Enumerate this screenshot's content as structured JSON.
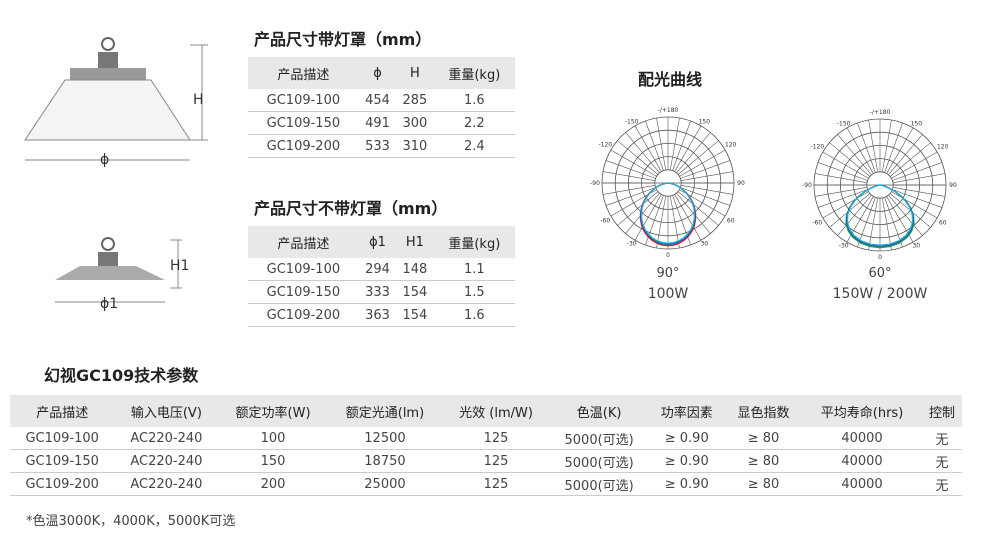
{
  "table1": {
    "title": "产品尺寸带灯罩（mm）",
    "headers": [
      "产品描述",
      "ϕ",
      "H",
      "重量(kg)"
    ],
    "rows": [
      [
        "GC109-100",
        "454",
        "285",
        "1.6"
      ],
      [
        "GC109-150",
        "491",
        "300",
        "2.2"
      ],
      [
        "GC109-200",
        "533",
        "310",
        "2.4"
      ]
    ]
  },
  "table2": {
    "title": "产品尺寸不带灯罩（mm）",
    "headers": [
      "产品描述",
      "ϕ1",
      "H1",
      "重量(kg)"
    ],
    "rows": [
      [
        "GC109-100",
        "294",
        "148",
        "1.1"
      ],
      [
        "GC109-150",
        "333",
        "154",
        "1.5"
      ],
      [
        "GC109-200",
        "363",
        "154",
        "1.6"
      ]
    ]
  },
  "drawing1": {
    "height_label": "H",
    "diameter_label": "ϕ"
  },
  "drawing2": {
    "height_label": "H1",
    "diameter_label": "ϕ1"
  },
  "polar": {
    "title": "配光曲线",
    "angle_labels": [
      "-/+180",
      "-150",
      "150",
      "-120",
      "120",
      "-90",
      "90",
      "-60",
      "60",
      "-30",
      "30",
      "0"
    ],
    "charts": [
      {
        "angle": "90°",
        "power": "100W",
        "colors": [
          "#e02020",
          "#2050c0",
          "#20b0d0"
        ]
      },
      {
        "angle": "60°",
        "power": "150W / 200W",
        "colors": [
          "#20a040",
          "#2050c0",
          "#20b0d0"
        ]
      }
    ]
  },
  "specs": {
    "title": "幻视GC109技术参数",
    "headers": [
      "产品描述",
      "输入电压(V)",
      "额定功率(W)",
      "额定光通(lm)",
      "光效 (lm/W)",
      "色温(K)",
      "功率因素",
      "显色指数",
      "平均寿命(hrs)",
      "控制"
    ],
    "rows": [
      [
        "GC109-100",
        "AC220-240",
        "100",
        "12500",
        "125",
        "5000(可选)",
        "≥ 0.90",
        "≥ 80",
        "40000",
        "无"
      ],
      [
        "GC109-150",
        "AC220-240",
        "150",
        "18750",
        "125",
        "5000(可选)",
        "≥ 0.90",
        "≥ 80",
        "40000",
        "无"
      ],
      [
        "GC109-200",
        "AC220-240",
        "200",
        "25000",
        "125",
        "5000(可选)",
        "≥ 0.90",
        "≥ 80",
        "40000",
        "无"
      ]
    ],
    "footnote": "*色温3000K，4000K，5000K可选"
  }
}
